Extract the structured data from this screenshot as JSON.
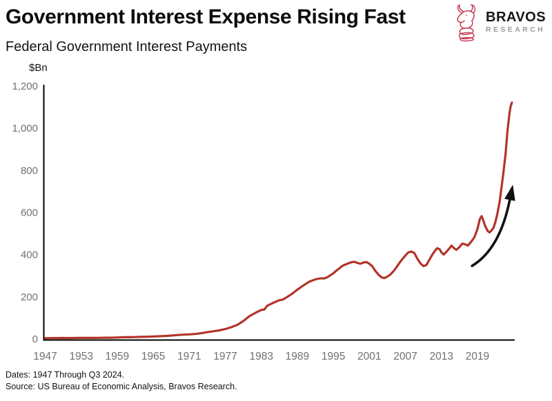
{
  "header": {
    "title": "Government Interest Expense Rising Fast",
    "subtitle": "Federal Government Interest Payments",
    "logo": {
      "icon": "bull-icon",
      "brand": "BRAVOS",
      "sub": "RESEARCH"
    }
  },
  "footer": {
    "line1": "Dates: 1947 Through Q3 2024.",
    "line2": "Source: US Bureau of Economic Analysis, Bravos Research."
  },
  "colors": {
    "series_line": "#B2342A",
    "axis": "#000000",
    "tick_text": "#6F6F6F",
    "arrow": "#111111",
    "logo_red": "#C43B52",
    "logo_sub_text": "#9B9B9B"
  },
  "chart_data": {
    "type": "line",
    "title": "Federal Government Interest Payments",
    "unit_label": "$Bn",
    "xlabel": "",
    "ylabel": "$Bn",
    "xlim": [
      1947,
      2025.2
    ],
    "ylim": [
      0,
      1200
    ],
    "grid": false,
    "legend": "none",
    "x_ticks": [
      1947,
      1953,
      1959,
      1965,
      1971,
      1977,
      1983,
      1989,
      1995,
      2001,
      2007,
      2013,
      2019
    ],
    "y_ticks": [
      {
        "label": "0",
        "value": 0
      },
      {
        "label": "200",
        "value": 200
      },
      {
        "label": "400",
        "value": 400
      },
      {
        "label": "600",
        "value": 600
      },
      {
        "label": "800",
        "value": 800
      },
      {
        "label": "1,000",
        "value": 1000
      },
      {
        "label": "1,200",
        "value": 1200
      }
    ],
    "series": [
      {
        "name": "Federal Government Interest Payments ($Bn)",
        "points": [
          [
            1947,
            4
          ],
          [
            1948,
            4.3
          ],
          [
            1949,
            4.5
          ],
          [
            1950,
            4.8
          ],
          [
            1951,
            4.7
          ],
          [
            1952,
            4.9
          ],
          [
            1953,
            5.2
          ],
          [
            1954,
            5.1
          ],
          [
            1955,
            5.3
          ],
          [
            1956,
            5.6
          ],
          [
            1957,
            6.1
          ],
          [
            1958,
            6.3
          ],
          [
            1959,
            7.3
          ],
          [
            1960,
            8.6
          ],
          [
            1961,
            8.6
          ],
          [
            1962,
            9.3
          ],
          [
            1963,
            10.1
          ],
          [
            1964,
            10.9
          ],
          [
            1965,
            11.8
          ],
          [
            1966,
            13
          ],
          [
            1967,
            14.5
          ],
          [
            1968,
            16.2
          ],
          [
            1969,
            18.5
          ],
          [
            1970,
            20.5
          ],
          [
            1971,
            22
          ],
          [
            1972,
            24
          ],
          [
            1973,
            27.5
          ],
          [
            1974,
            32.5
          ],
          [
            1975,
            36.5
          ],
          [
            1976,
            41
          ],
          [
            1977,
            47
          ],
          [
            1978,
            56
          ],
          [
            1979,
            67
          ],
          [
            1980,
            85
          ],
          [
            1981,
            108
          ],
          [
            1982,
            124
          ],
          [
            1983,
            138
          ],
          [
            1983.5,
            140
          ],
          [
            1984,
            158
          ],
          [
            1985,
            172
          ],
          [
            1985.5,
            178
          ],
          [
            1986,
            184
          ],
          [
            1986.5,
            186
          ],
          [
            1987,
            194
          ],
          [
            1988,
            212
          ],
          [
            1989,
            234
          ],
          [
            1990,
            254
          ],
          [
            1991,
            272
          ],
          [
            1992,
            283
          ],
          [
            1992.5,
            286
          ],
          [
            1993,
            288
          ],
          [
            1993.5,
            287
          ],
          [
            1994,
            293
          ],
          [
            1995,
            312
          ],
          [
            1995.5,
            324
          ],
          [
            1996,
            335
          ],
          [
            1996.5,
            347
          ],
          [
            1997,
            353
          ],
          [
            1997.5,
            359
          ],
          [
            1998,
            364
          ],
          [
            1998.5,
            367
          ],
          [
            1999,
            361
          ],
          [
            1999.5,
            357
          ],
          [
            2000,
            363
          ],
          [
            2000.5,
            365
          ],
          [
            2001,
            357
          ],
          [
            2001.5,
            345
          ],
          [
            2002,
            323
          ],
          [
            2002.5,
            306
          ],
          [
            2003,
            293
          ],
          [
            2003.5,
            289
          ],
          [
            2004,
            296
          ],
          [
            2004.5,
            306
          ],
          [
            2005,
            321
          ],
          [
            2005.5,
            339
          ],
          [
            2006,
            361
          ],
          [
            2006.5,
            379
          ],
          [
            2007,
            396
          ],
          [
            2007.5,
            411
          ],
          [
            2008,
            415
          ],
          [
            2008.5,
            408
          ],
          [
            2009,
            381
          ],
          [
            2009.5,
            359
          ],
          [
            2010,
            346
          ],
          [
            2010.5,
            351
          ],
          [
            2011,
            376
          ],
          [
            2011.5,
            401
          ],
          [
            2012,
            421
          ],
          [
            2012.3,
            431
          ],
          [
            2012.7,
            426
          ],
          [
            2013,
            411
          ],
          [
            2013.4,
            401
          ],
          [
            2014,
            419
          ],
          [
            2014.7,
            443
          ],
          [
            2015.1,
            431
          ],
          [
            2015.5,
            423
          ],
          [
            2016,
            436
          ],
          [
            2016.5,
            453
          ],
          [
            2017,
            449
          ],
          [
            2017.4,
            443
          ],
          [
            2018,
            463
          ],
          [
            2018.5,
            483
          ],
          [
            2019,
            521
          ],
          [
            2019.4,
            569
          ],
          [
            2019.7,
            583
          ],
          [
            2020,
            561
          ],
          [
            2020.3,
            536
          ],
          [
            2020.7,
            513
          ],
          [
            2021,
            506
          ],
          [
            2021.3,
            513
          ],
          [
            2021.7,
            529
          ],
          [
            2022,
            556
          ],
          [
            2022.3,
            591
          ],
          [
            2022.7,
            651
          ],
          [
            2023,
            716
          ],
          [
            2023.3,
            781
          ],
          [
            2023.7,
            881
          ],
          [
            2024,
            986
          ],
          [
            2024.3,
            1061
          ],
          [
            2024.5,
            1101
          ],
          [
            2024.75,
            1122
          ]
        ]
      }
    ],
    "annotations": [
      {
        "type": "curved-arrow",
        "meaning": "highlights accelerating rise",
        "from": [
          2018.1,
          347
        ],
        "to": [
          2024.9,
          732
        ]
      }
    ]
  }
}
